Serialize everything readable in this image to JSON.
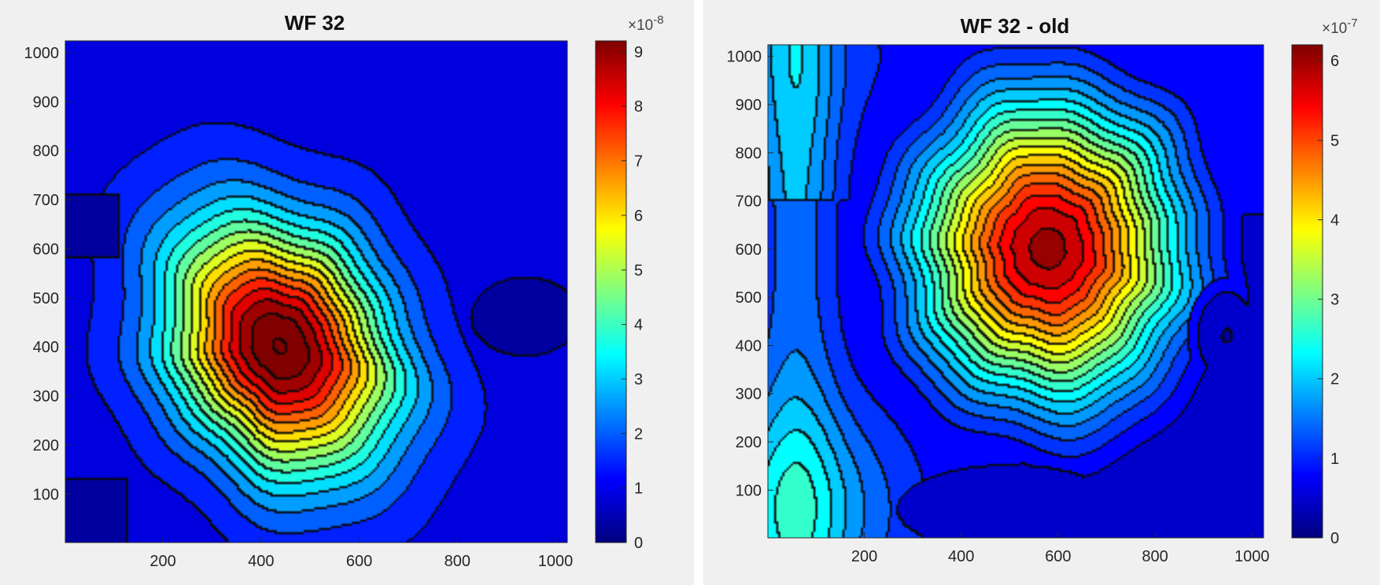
{
  "chart_data": [
    {
      "type": "heatmap",
      "title": "WF 32",
      "xlabel": "",
      "ylabel": "",
      "xlim": [
        1,
        1024
      ],
      "ylim": [
        1,
        1024
      ],
      "x_ticks": [
        "200",
        "400",
        "600",
        "800",
        "1000"
      ],
      "y_ticks": [
        "100",
        "200",
        "300",
        "400",
        "500",
        "600",
        "700",
        "800",
        "900",
        "1000"
      ],
      "colormap": "jet",
      "colorbar": {
        "range": [
          0,
          9.2
        ],
        "ticks": [
          "0",
          "1",
          "2",
          "3",
          "4",
          "5",
          "6",
          "7",
          "8",
          "9"
        ],
        "exponent_label": "×10",
        "exponent_power": "-8"
      },
      "contour_levels": 16,
      "peak": {
        "x": 440,
        "y": 400,
        "value": 9.0
      },
      "blob_radius": [
        250,
        330
      ],
      "background_value": 0.9
    },
    {
      "type": "heatmap",
      "title": "WF 32 - old",
      "xlabel": "",
      "ylabel": "",
      "xlim": [
        1,
        1024
      ],
      "ylim": [
        1,
        1024
      ],
      "x_ticks": [
        "200",
        "400",
        "600",
        "800",
        "1000"
      ],
      "y_ticks": [
        "100",
        "200",
        "300",
        "400",
        "500",
        "600",
        "700",
        "800",
        "900",
        "1000"
      ],
      "colormap": "jet",
      "colorbar": {
        "range": [
          0,
          6.2
        ],
        "ticks": [
          "0",
          "1",
          "2",
          "3",
          "4",
          "5",
          "6"
        ],
        "exponent_label": "×10",
        "exponent_power": "-7"
      },
      "contour_levels": 20,
      "peak": {
        "x": 580,
        "y": 600,
        "value": 6.0
      },
      "blob_radius": [
        290,
        330
      ],
      "background_value": 1.0
    }
  ]
}
